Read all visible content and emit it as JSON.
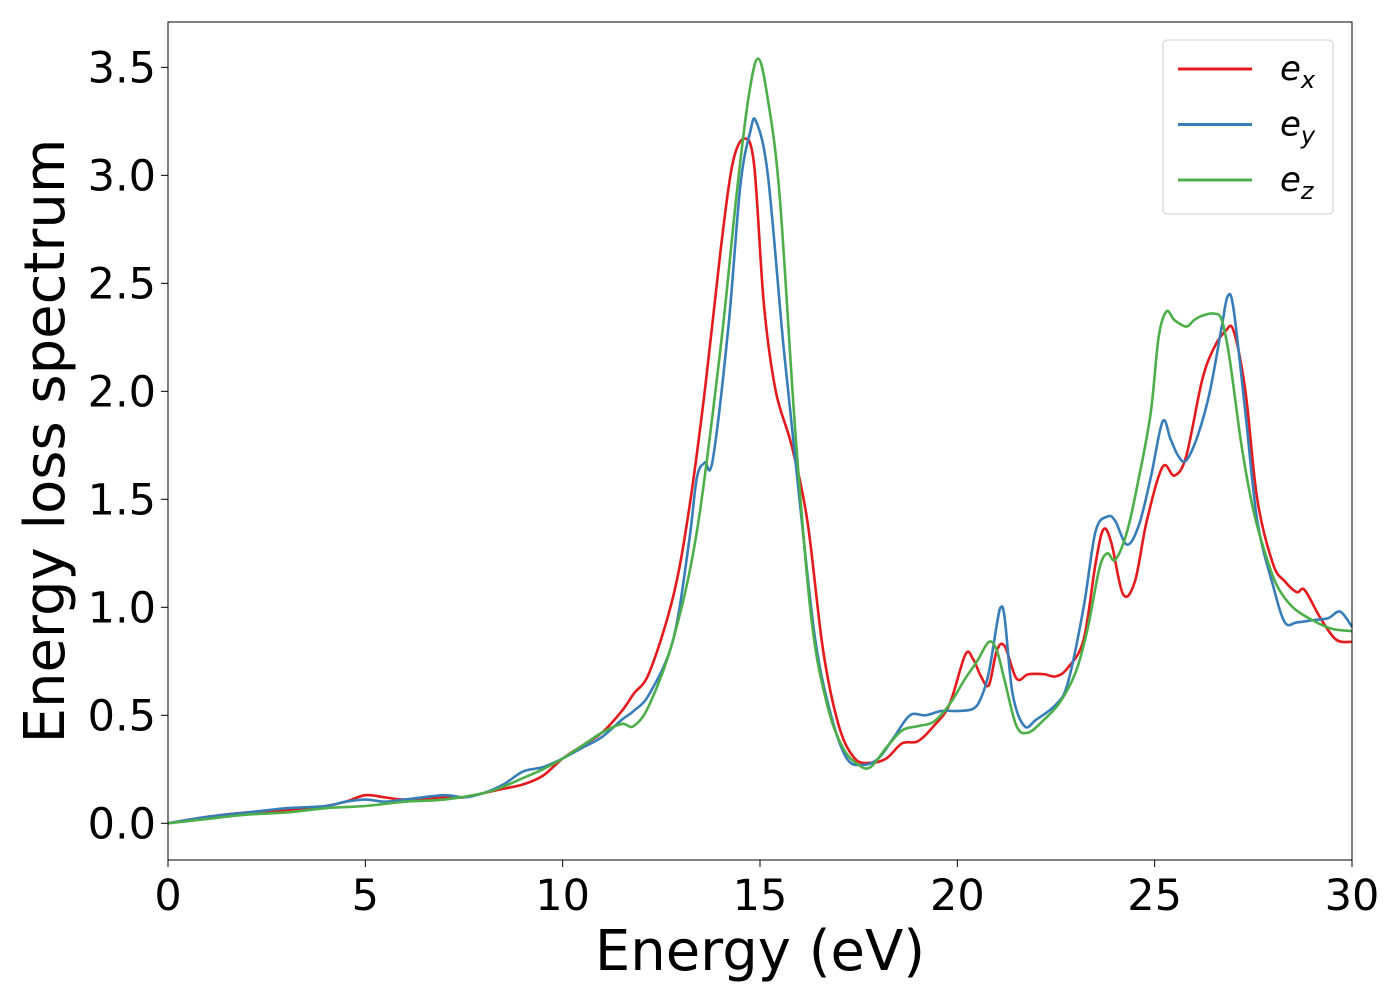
{
  "chart_data": {
    "type": "line",
    "title": "",
    "xlabel": "Energy (eV)",
    "ylabel": "Energy loss spectrum",
    "xlim": [
      0,
      30
    ],
    "ylim": [
      -0.17,
      3.71
    ],
    "xticks": [
      0,
      5,
      10,
      15,
      20,
      25,
      30
    ],
    "xtick_labels": [
      "0",
      "5",
      "10",
      "15",
      "20",
      "25",
      "30"
    ],
    "yticks": [
      0.0,
      0.5,
      1.0,
      1.5,
      2.0,
      2.5,
      3.0,
      3.5
    ],
    "ytick_labels": [
      "0.0",
      "0.5",
      "1.0",
      "1.5",
      "2.0",
      "2.5",
      "3.0",
      "3.5"
    ],
    "grid": false,
    "legend_position": "top-right",
    "series": [
      {
        "name": "e",
        "sub": "x",
        "color": "#e41a1c",
        "x": [
          0,
          1,
          2,
          3,
          4,
          4.5,
          5,
          5.5,
          6,
          7,
          7.5,
          8,
          8.5,
          9,
          9.5,
          10,
          10.5,
          11,
          11.5,
          11.8,
          12.2,
          12.8,
          13.2,
          13.6,
          14,
          14.3,
          14.6,
          14.85,
          15.1,
          15.4,
          15.8,
          16.2,
          16.6,
          17,
          17.4,
          17.8,
          18.2,
          18.6,
          19,
          19.4,
          19.8,
          20.2,
          20.4,
          20.6,
          20.8,
          21,
          21.2,
          21.5,
          21.8,
          22.2,
          22.5,
          22.8,
          23.2,
          23.5,
          23.7,
          23.9,
          24.2,
          24.5,
          24.8,
          25.2,
          25.5,
          25.8,
          26.2,
          26.5,
          26.8,
          27,
          27.3,
          27.6,
          28,
          28.3,
          28.6,
          28.8,
          29.2,
          29.6,
          30
        ],
        "y": [
          0.0,
          0.03,
          0.05,
          0.06,
          0.08,
          0.1,
          0.13,
          0.12,
          0.11,
          0.12,
          0.12,
          0.14,
          0.16,
          0.18,
          0.22,
          0.3,
          0.36,
          0.42,
          0.52,
          0.6,
          0.7,
          1.05,
          1.45,
          2.0,
          2.65,
          3.05,
          3.17,
          3.05,
          2.4,
          2.0,
          1.75,
          1.4,
          0.8,
          0.45,
          0.3,
          0.28,
          0.3,
          0.37,
          0.38,
          0.45,
          0.55,
          0.78,
          0.76,
          0.68,
          0.64,
          0.8,
          0.82,
          0.67,
          0.69,
          0.69,
          0.68,
          0.72,
          0.85,
          1.2,
          1.36,
          1.3,
          1.06,
          1.12,
          1.4,
          1.65,
          1.61,
          1.7,
          2.05,
          2.2,
          2.28,
          2.28,
          2.0,
          1.5,
          1.2,
          1.12,
          1.07,
          1.08,
          0.95,
          0.85,
          0.84
        ]
      },
      {
        "name": "e",
        "sub": "y",
        "color": "#377eb8",
        "x": [
          0,
          1,
          2,
          2.5,
          3,
          4,
          4.5,
          5,
          5.5,
          6,
          7,
          7.5,
          8,
          8.5,
          9,
          9.5,
          10,
          10.5,
          11,
          11.5,
          11.8,
          12.2,
          12.8,
          13.2,
          13.4,
          13.6,
          13.8,
          14.2,
          14.5,
          14.75,
          14.9,
          15.2,
          15.6,
          16,
          16.4,
          16.8,
          17.2,
          17.6,
          18,
          18.4,
          18.8,
          19.2,
          19.6,
          20,
          20.4,
          20.6,
          20.8,
          21,
          21.1,
          21.2,
          21.4,
          21.7,
          22,
          22.5,
          22.8,
          23.2,
          23.5,
          23.8,
          24,
          24.3,
          24.6,
          24.9,
          25.2,
          25.4,
          25.6,
          25.8,
          26.1,
          26.4,
          26.7,
          26.85,
          27,
          27.3,
          27.6,
          28,
          28.3,
          28.6,
          29,
          29.4,
          29.7,
          30
        ],
        "y": [
          0.0,
          0.03,
          0.05,
          0.06,
          0.07,
          0.08,
          0.1,
          0.11,
          0.1,
          0.11,
          0.13,
          0.12,
          0.14,
          0.18,
          0.24,
          0.26,
          0.3,
          0.35,
          0.4,
          0.48,
          0.52,
          0.6,
          0.85,
          1.3,
          1.6,
          1.67,
          1.68,
          2.3,
          2.95,
          3.2,
          3.25,
          3.0,
          2.2,
          1.5,
          0.85,
          0.5,
          0.3,
          0.27,
          0.3,
          0.4,
          0.5,
          0.5,
          0.52,
          0.52,
          0.53,
          0.58,
          0.7,
          0.92,
          1.0,
          0.95,
          0.6,
          0.45,
          0.48,
          0.55,
          0.65,
          1.0,
          1.35,
          1.42,
          1.4,
          1.29,
          1.38,
          1.6,
          1.86,
          1.78,
          1.7,
          1.68,
          1.8,
          2.0,
          2.3,
          2.44,
          2.38,
          1.9,
          1.4,
          1.1,
          0.93,
          0.93,
          0.94,
          0.95,
          0.98,
          0.91
        ]
      },
      {
        "name": "e",
        "sub": "z",
        "color": "#4daf4a",
        "x": [
          0,
          1,
          2,
          3,
          4,
          5,
          6,
          7,
          8,
          8.5,
          9,
          9.5,
          10,
          10.5,
          11,
          11.5,
          11.8,
          12.2,
          12.8,
          13.4,
          14,
          14.4,
          14.7,
          14.95,
          15.2,
          15.5,
          15.9,
          16.3,
          16.7,
          17.1,
          17.5,
          17.8,
          18.2,
          18.6,
          19,
          19.4,
          19.8,
          20.2,
          20.5,
          20.8,
          21,
          21.2,
          21.5,
          21.8,
          22.2,
          22.6,
          23,
          23.3,
          23.6,
          23.8,
          24,
          24.3,
          24.6,
          24.9,
          25.1,
          25.3,
          25.5,
          25.8,
          26,
          26.2,
          26.5,
          26.7,
          26.9,
          27.2,
          27.5,
          27.8,
          28.1,
          28.5,
          29,
          29.5,
          30
        ],
        "y": [
          0.0,
          0.02,
          0.04,
          0.05,
          0.07,
          0.08,
          0.1,
          0.11,
          0.14,
          0.17,
          0.21,
          0.25,
          0.3,
          0.36,
          0.42,
          0.46,
          0.45,
          0.55,
          0.85,
          1.35,
          2.2,
          2.9,
          3.35,
          3.54,
          3.35,
          2.9,
          1.8,
          0.95,
          0.55,
          0.35,
          0.27,
          0.26,
          0.35,
          0.43,
          0.45,
          0.47,
          0.55,
          0.67,
          0.75,
          0.84,
          0.8,
          0.66,
          0.45,
          0.42,
          0.48,
          0.56,
          0.7,
          0.9,
          1.18,
          1.25,
          1.22,
          1.35,
          1.6,
          1.9,
          2.25,
          2.37,
          2.33,
          2.3,
          2.33,
          2.35,
          2.36,
          2.33,
          2.15,
          1.75,
          1.45,
          1.25,
          1.1,
          1.0,
          0.94,
          0.9,
          0.89
        ]
      }
    ]
  }
}
